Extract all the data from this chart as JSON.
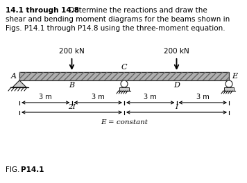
{
  "title_bold": "14.1 through 14.8",
  "title_normal": " Determine the reactions and draw the",
  "title_line2": "shear and bending moment diagrams for the beams shown in",
  "title_line3": "Figs. P14.1 through P14.8 using the three-moment equation.",
  "fig_label_normal": "FIG. ",
  "fig_label_bold": "P14.1",
  "E_constant_label": "E = constant",
  "load1_value": "200 kN",
  "load2_value": "200 kN",
  "span_label": "3 m",
  "moment_labels": [
    "2I",
    "I"
  ],
  "point_labels": [
    "A",
    "B",
    "C",
    "D",
    "E"
  ],
  "background_color": "#ffffff",
  "beam_color": "#b0b0b0",
  "beam_edge_color": "#222222",
  "text_color": "#000000",
  "line_color": "#000000",
  "title_fontsize": 7.5,
  "label_fontsize": 8.0,
  "dim_fontsize": 7.0,
  "fig_label_fontsize": 7.5
}
